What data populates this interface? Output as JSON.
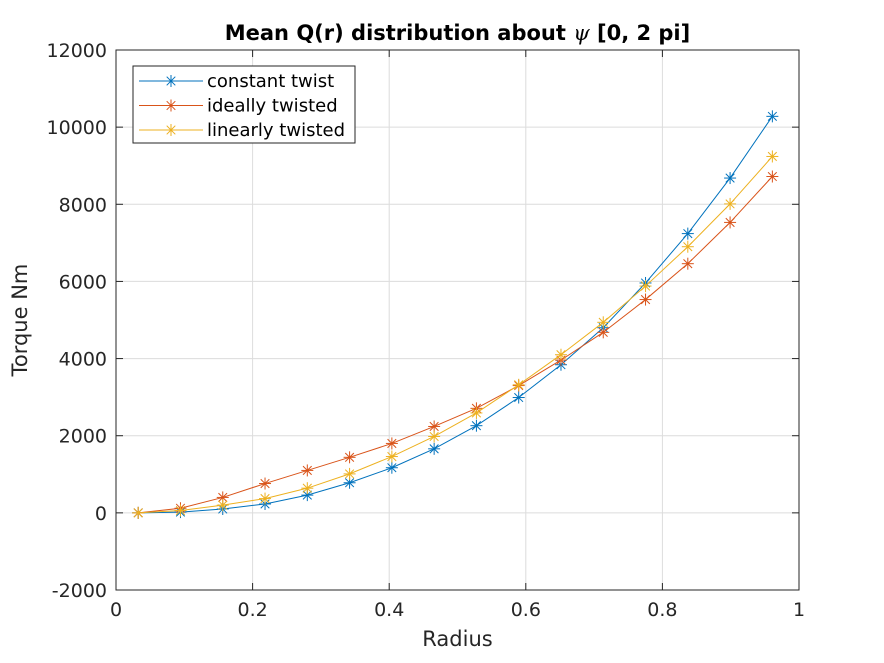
{
  "chart_data": {
    "type": "line",
    "title": "Mean Q(r) distribution about ψ [0, 2 pi]",
    "title_prefix": "Mean Q(r) distribution about ",
    "title_symbol": "ψ",
    "title_suffix": " [0, 2 pi]",
    "xlabel": "Radius",
    "ylabel": "Torque Nm",
    "xlim": [
      0,
      1
    ],
    "ylim": [
      -2000,
      12000
    ],
    "xticks": [
      0,
      0.2,
      0.4,
      0.6,
      0.8,
      1
    ],
    "xtick_labels": [
      "0",
      "0.2",
      "0.4",
      "0.6",
      "0.8",
      "1"
    ],
    "yticks": [
      -2000,
      0,
      2000,
      4000,
      6000,
      8000,
      10000,
      12000
    ],
    "ytick_labels": [
      "-2000",
      "0",
      "2000",
      "4000",
      "6000",
      "8000",
      "10000",
      "12000"
    ],
    "grid": true,
    "legend_position": "top-left",
    "marker": "asterisk",
    "x": [
      0.0325,
      0.0944,
      0.1563,
      0.2182,
      0.2801,
      0.342,
      0.4039,
      0.4658,
      0.5277,
      0.5896,
      0.6515,
      0.7134,
      0.7753,
      0.8372,
      0.8991,
      0.961
    ],
    "series": [
      {
        "name": "constant twist",
        "color": "#0072BD",
        "values": [
          0,
          20,
          100,
          230,
          460,
          780,
          1170,
          1660,
          2260,
          2990,
          3840,
          4800,
          5960,
          7240,
          8680,
          10280
        ]
      },
      {
        "name": "ideally twisted",
        "color": "#D95319",
        "values": [
          0,
          120,
          400,
          760,
          1100,
          1440,
          1800,
          2240,
          2710,
          3300,
          3960,
          4680,
          5530,
          6460,
          7530,
          8720
        ]
      },
      {
        "name": "linearly twisted",
        "color": "#EDB120",
        "values": [
          0,
          60,
          200,
          370,
          640,
          1010,
          1460,
          1980,
          2590,
          3320,
          4100,
          4940,
          5880,
          6900,
          8010,
          9240
        ]
      }
    ]
  }
}
